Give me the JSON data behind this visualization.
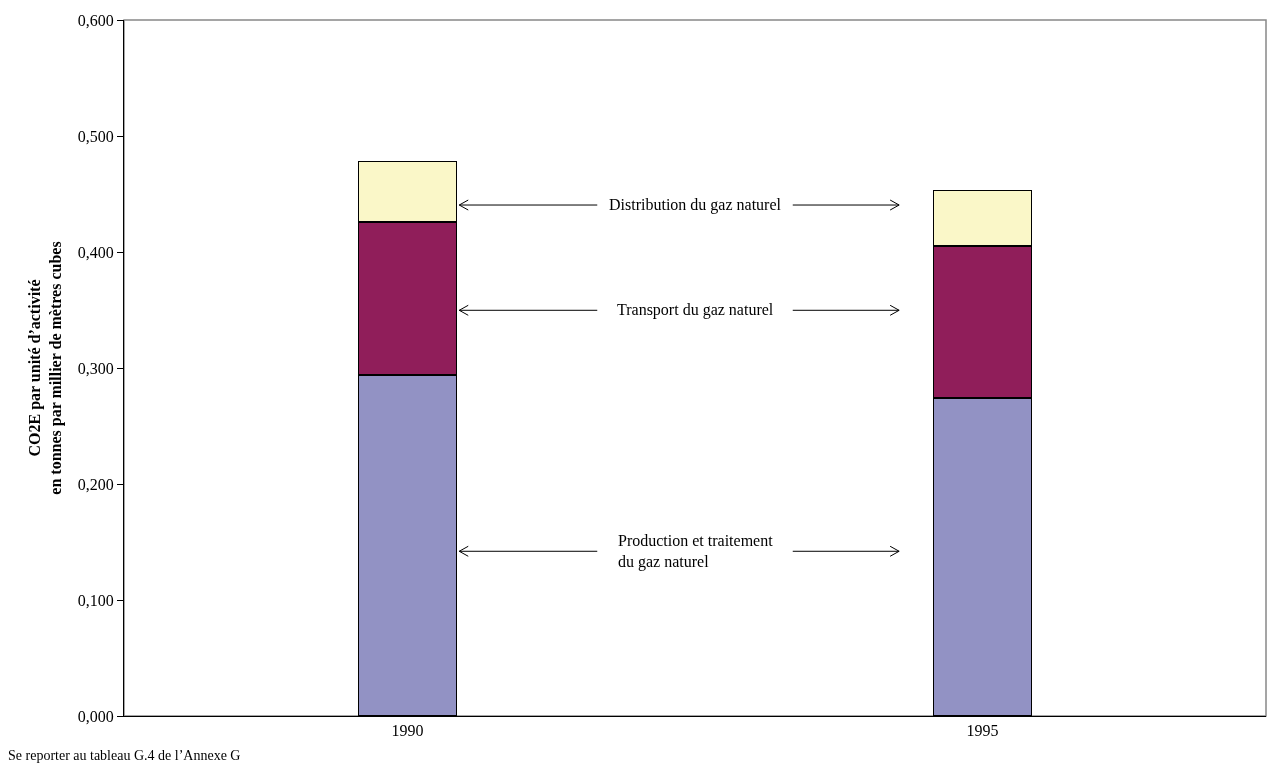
{
  "chart_data": {
    "type": "bar",
    "stacked": true,
    "ylabel": "CO2E par unité d’activité\nen tonnes par millier de mètres cubes",
    "categories": [
      "1990",
      "1995"
    ],
    "series": [
      {
        "name": "Production et traitement\ndu gaz naturel",
        "color": "#9292c4",
        "values": [
          0.294,
          0.274
        ]
      },
      {
        "name": "Transport du gaz naturel",
        "color": "#901e5a",
        "values": [
          0.132,
          0.131
        ]
      },
      {
        "name": "Distribution du gaz naturel",
        "color": "#faf7c8",
        "values": [
          0.052,
          0.048
        ]
      }
    ],
    "ylim": [
      0,
      0.6
    ],
    "yticks": [
      {
        "value": 0,
        "label": "0,000"
      },
      {
        "value": 0.1,
        "label": "0,100"
      },
      {
        "value": 0.2,
        "label": "0,200"
      },
      {
        "value": 0.3,
        "label": "0,300"
      },
      {
        "value": 0.4,
        "label": "0,400"
      },
      {
        "value": 0.5,
        "label": "0,500"
      },
      {
        "value": 0.6,
        "label": "0,600"
      }
    ],
    "grid": false,
    "legend": false,
    "annotations": [
      "Se reporter au tableau G.4 de l’Annexe G"
    ]
  }
}
